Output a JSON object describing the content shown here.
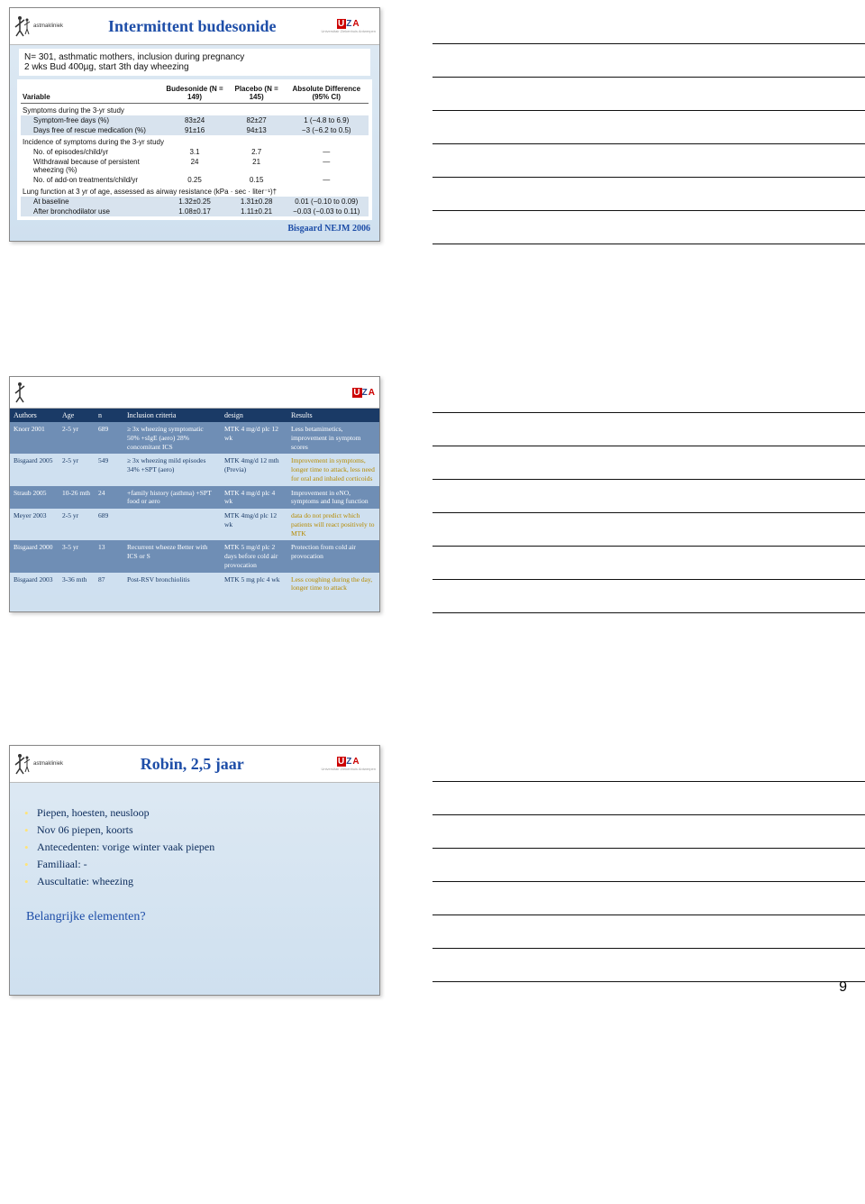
{
  "page_number": "9",
  "logos": {
    "left_caption": "astmakliniek",
    "right_brand": "UZA"
  },
  "slide1": {
    "title": "Intermittent budesonide",
    "subtitle_lines": [
      "N= 301, asthmatic mothers, inclusion during pregnancy",
      "2 wks Bud 400µg, start 3th day wheezing"
    ],
    "citation": "Bisgaard NEJM 2006",
    "table": {
      "head": [
        "Variable",
        "Budesonide (N = 149)",
        "Placebo (N = 145)",
        "Absolute Difference (95% CI)"
      ],
      "sections": [
        {
          "heading": "Symptoms during the 3-yr study",
          "rows": [
            [
              "Symptom-free days (%)",
              "83±24",
              "82±27",
              "1 (−4.8 to 6.9)"
            ],
            [
              "Days free of rescue medication (%)",
              "91±16",
              "94±13",
              "−3 (−6.2 to 0.5)"
            ]
          ]
        },
        {
          "heading": "Incidence of symptoms during the 3-yr study",
          "rows": [
            [
              "No. of episodes/child/yr",
              "3.1",
              "2.7",
              "—"
            ],
            [
              "Withdrawal because of persistent wheezing (%)",
              "24",
              "21",
              "—"
            ],
            [
              "No. of add-on treatments/child/yr",
              "0.25",
              "0.15",
              "—"
            ]
          ]
        },
        {
          "heading": "Lung function at 3 yr of age, assessed as airway resistance (kPa · sec · liter⁻¹)†",
          "rows": [
            [
              "At baseline",
              "1.32±0.25",
              "1.31±0.28",
              "0.01 (−0.10 to 0.09)"
            ],
            [
              "After bronchodilator use",
              "1.08±0.17",
              "1.11±0.21",
              "−0.03 (−0.03 to 0.11)"
            ]
          ]
        }
      ]
    }
  },
  "slide2": {
    "head": [
      "Authors",
      "Age",
      "n",
      "Inclusion criteria",
      "design",
      "Results"
    ],
    "rows": [
      {
        "cls": "dark",
        "c": [
          "Knorr 2001",
          "2-5 yr",
          "689",
          "≥ 3x wheezing symptomatic 50% +sIgE (aero) 28% concomitant ICS",
          "MTK 4 mg/d plc 12 wk",
          "Less betamimetics, improvement in symptom scores"
        ]
      },
      {
        "cls": "light",
        "c": [
          "Bisgaard 2005",
          "2-5 yr",
          "549",
          "≥ 3x wheezing mild episodes 34% +SPT (aero)",
          "MTK 4mg/d 12 mth (Previa)",
          "Improvement in symptoms, longer time to attack, less need for oral and inhaled corticoids"
        ]
      },
      {
        "cls": "dark",
        "c": [
          "Straub 2005",
          "10-26 mth",
          "24",
          "+family history (asthma) +SPT food or aero",
          "MTK 4 mg/d plc 4 wk",
          "Improvement in eNO, symptoms and lung function"
        ]
      },
      {
        "cls": "light",
        "c": [
          "Meyer 2003",
          "2-5 yr",
          "689",
          "",
          "MTK 4mg/d plc 12 wk",
          "data do not predict which patients will react positively to MTK"
        ]
      },
      {
        "cls": "dark",
        "c": [
          "Bisgaard 2000",
          "3-5 yr",
          "13",
          "Recurrent wheeze Better with ICS or S",
          "MTK 5 mg/d plc 2 days before cold air provocation",
          "Protection from cold air provocation"
        ]
      },
      {
        "cls": "light",
        "c": [
          "Bisgaard 2003",
          "3-36 mth",
          "87",
          "Post-RSV bronchiolitis",
          "MTK 5 mg plc 4 wk",
          "Less coughing during the day, longer time to attack"
        ]
      }
    ]
  },
  "slide3": {
    "title": "Robin, 2,5 jaar",
    "bullets": [
      "Piepen, hoesten, neusloop",
      "Nov 06 piepen, koorts",
      "Antecedenten: vorige winter vaak piepen",
      "Familiaal: -",
      "Auscultatie: wheezing"
    ],
    "question": "Belangrijke elementen?"
  }
}
